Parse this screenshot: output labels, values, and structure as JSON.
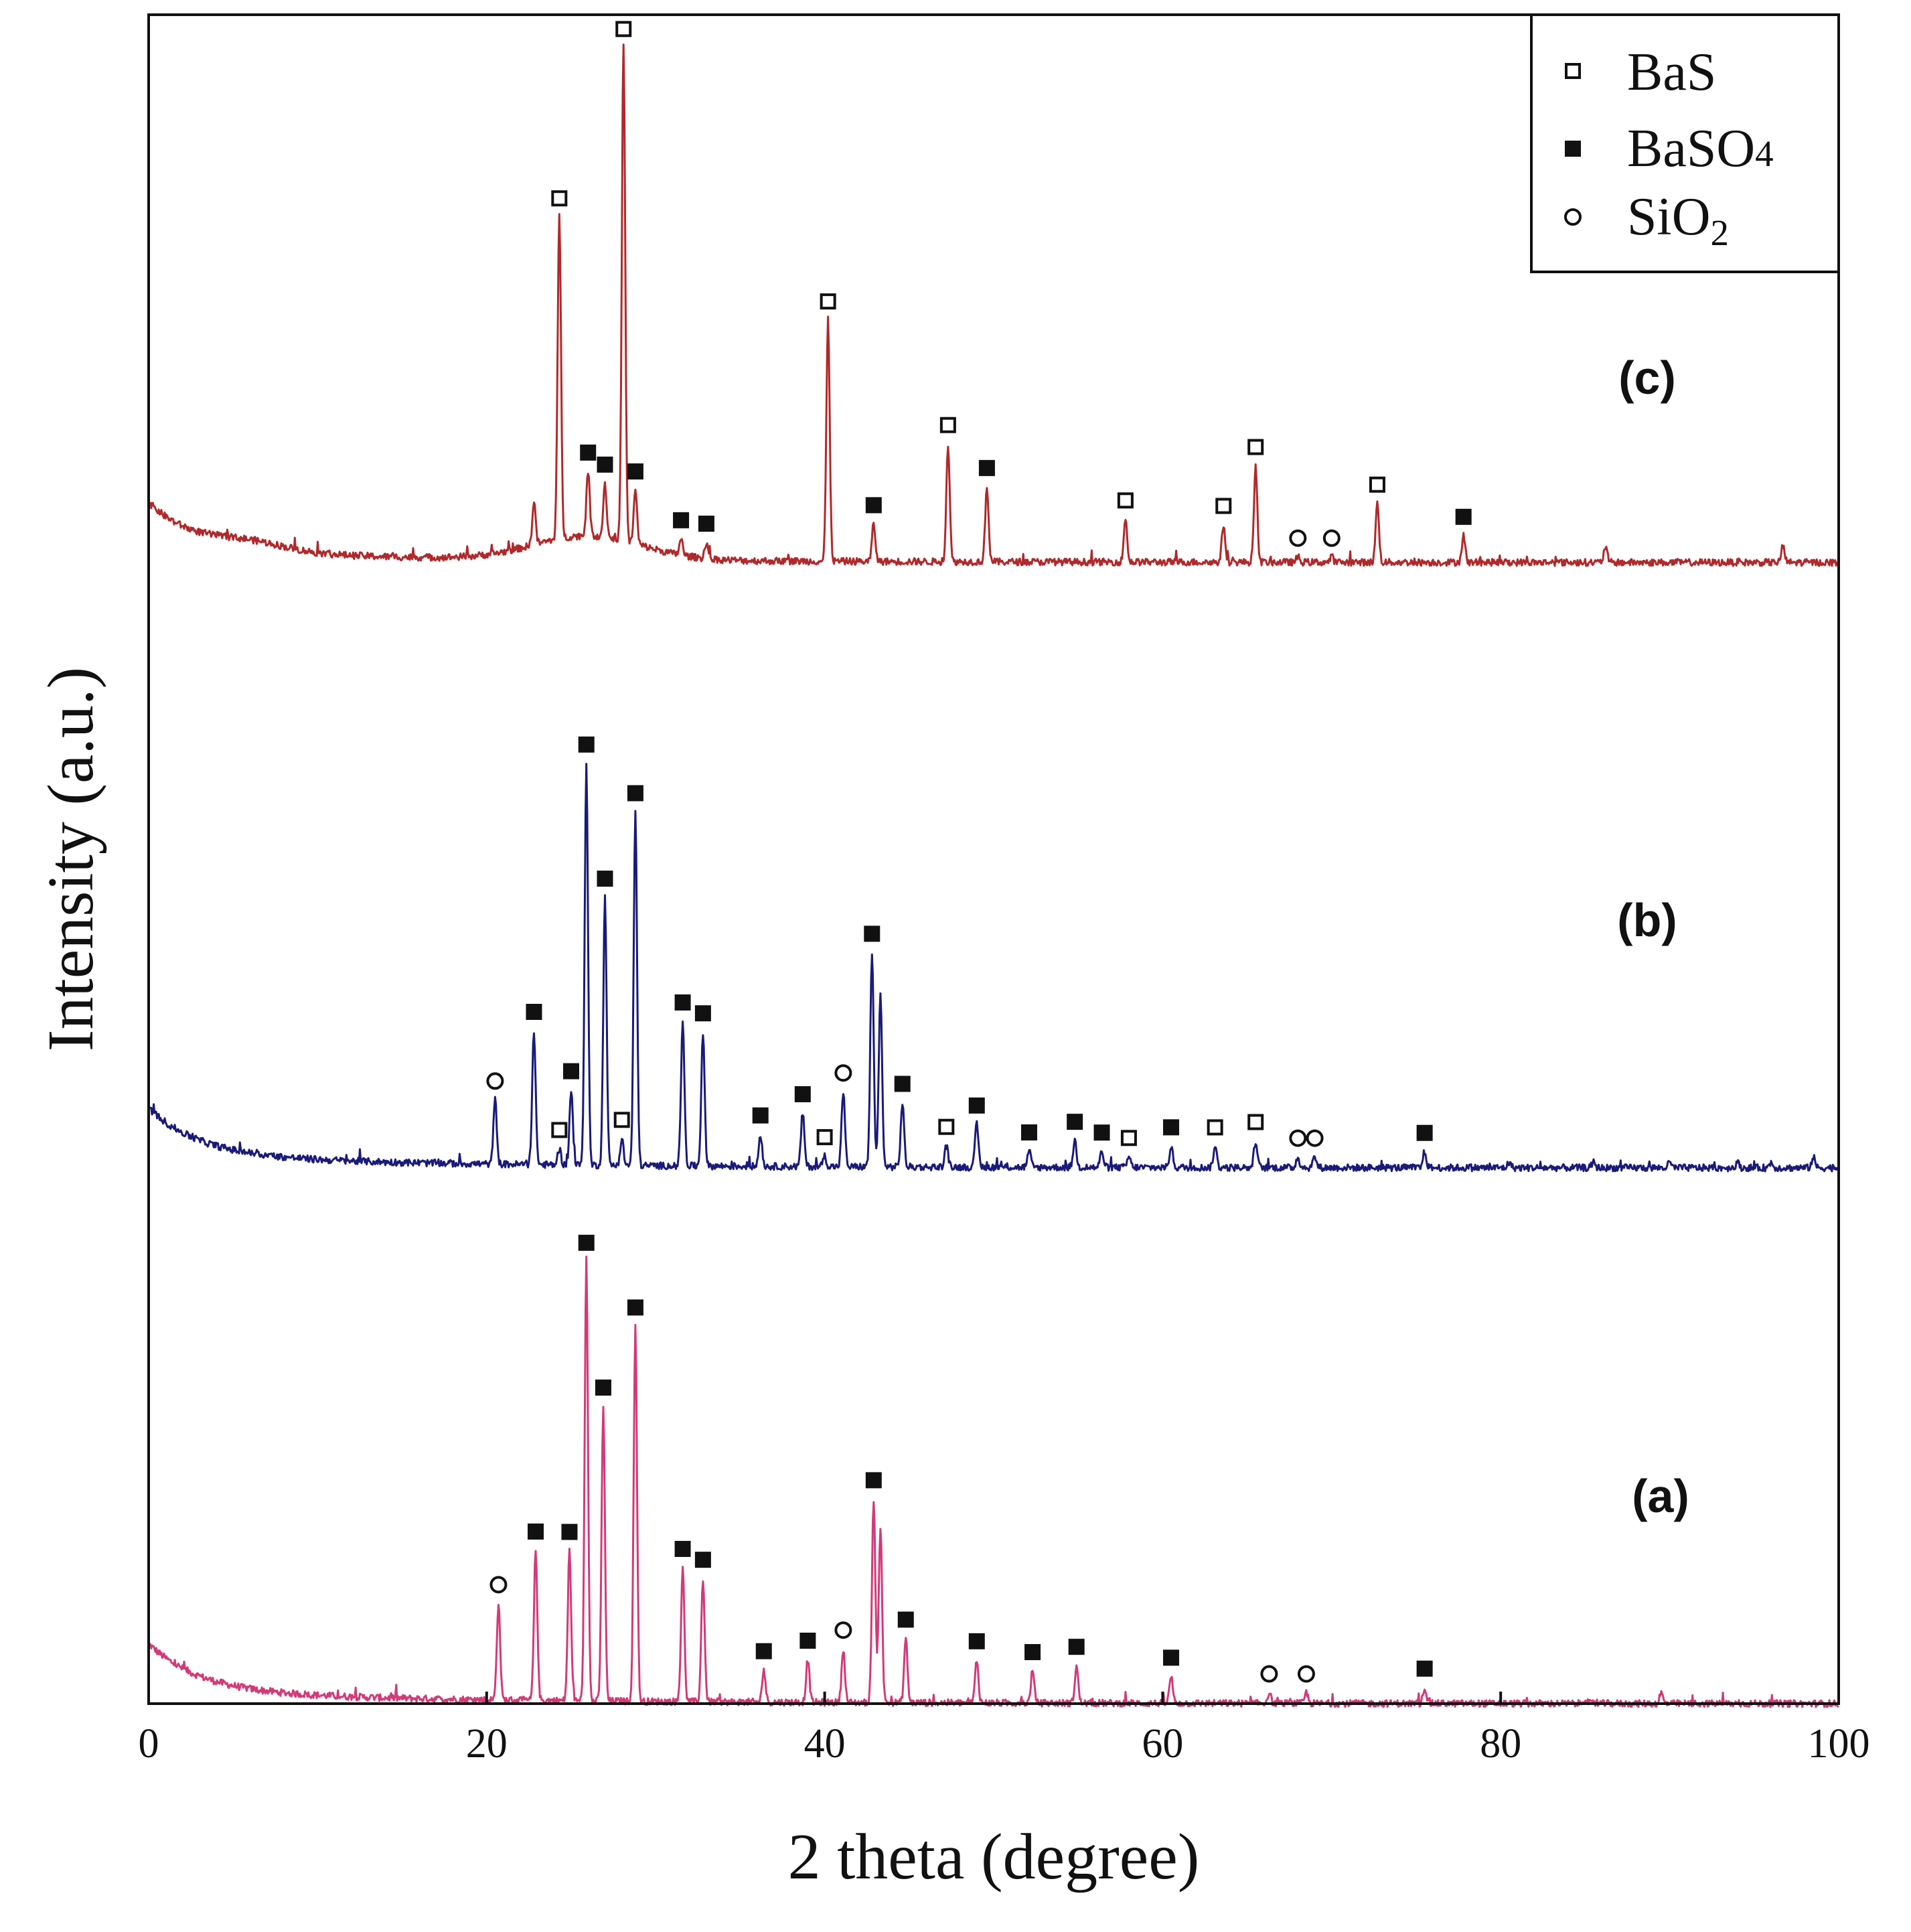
{
  "chart_data": {
    "type": "line",
    "title": "",
    "xlabel": "2 theta (degree)",
    "ylabel": "Intensity (a.u.)",
    "xlim": [
      0,
      100
    ],
    "xticks": [
      0,
      20,
      40,
      60,
      80,
      100
    ],
    "yticks": [],
    "grid": false,
    "legend": {
      "placement": "top-right",
      "entries": [
        {
          "name": "BaS",
          "marker": "open-square"
        },
        {
          "name": "BaSO4",
          "marker": "filled-square"
        },
        {
          "name": "SiO2",
          "marker": "open-circle"
        }
      ]
    },
    "series": [
      {
        "name": "(a)",
        "color": "#d23a78",
        "offset": 0,
        "peaks": [
          [
            20.7,
            18,
            "SiO2"
          ],
          [
            22.9,
            28,
            "BaSO4"
          ],
          [
            24.9,
            28,
            "BaSO4"
          ],
          [
            25.9,
            82,
            "BaSO4"
          ],
          [
            26.9,
            55,
            "BaSO4"
          ],
          [
            28.8,
            70,
            "BaSO4"
          ],
          [
            31.6,
            25,
            "BaSO4"
          ],
          [
            32.8,
            23,
            "BaSO4"
          ],
          [
            36.4,
            6,
            "BaSO4"
          ],
          [
            39.0,
            8,
            "BaSO4"
          ],
          [
            41.1,
            10,
            "SiO2"
          ],
          [
            42.9,
            38,
            "BaSO4"
          ],
          [
            43.3,
            33,
            null
          ],
          [
            44.8,
            12,
            "BaSO4"
          ],
          [
            49.0,
            8,
            "BaSO4"
          ],
          [
            52.3,
            6,
            "BaSO4"
          ],
          [
            54.9,
            7,
            "BaSO4"
          ],
          [
            60.5,
            5,
            "BaSO4"
          ],
          [
            66.3,
            2,
            "SiO2"
          ],
          [
            68.5,
            2,
            "SiO2"
          ],
          [
            75.5,
            3,
            "BaSO4"
          ],
          [
            85.0,
            1,
            null
          ],
          [
            89.5,
            2,
            null
          ]
        ]
      },
      {
        "name": "(b)",
        "color": "#1a1a7a",
        "offset": 100,
        "peaks": [
          [
            20.5,
            12,
            "SiO2"
          ],
          [
            22.8,
            25,
            "BaSO4"
          ],
          [
            24.3,
            3,
            "BaS"
          ],
          [
            25.0,
            14,
            "BaSO4"
          ],
          [
            25.9,
            75,
            "BaSO4"
          ],
          [
            27.0,
            50,
            "BaSO4"
          ],
          [
            28.0,
            5,
            "BaS"
          ],
          [
            28.8,
            66,
            "BaSO4"
          ],
          [
            31.6,
            27,
            "BaSO4"
          ],
          [
            32.8,
            25,
            "BaSO4"
          ],
          [
            36.2,
            6,
            "BaSO4"
          ],
          [
            38.7,
            10,
            "BaSO4"
          ],
          [
            40.0,
            2,
            "BaS"
          ],
          [
            41.1,
            14,
            "SiO2"
          ],
          [
            42.8,
            40,
            "BaSO4"
          ],
          [
            43.3,
            32,
            null
          ],
          [
            44.6,
            12,
            "BaSO4"
          ],
          [
            47.2,
            4,
            "BaS"
          ],
          [
            49.0,
            8,
            "BaSO4"
          ],
          [
            52.1,
            3,
            "BaSO4"
          ],
          [
            54.8,
            5,
            "BaSO4"
          ],
          [
            56.4,
            3,
            "BaSO4"
          ],
          [
            58.0,
            2,
            "BaS"
          ],
          [
            60.5,
            4,
            "BaSO4"
          ],
          [
            63.1,
            4,
            "BaS"
          ],
          [
            65.5,
            5,
            "BaS"
          ],
          [
            68.0,
            2,
            "SiO2"
          ],
          [
            69.0,
            2,
            "SiO2"
          ],
          [
            75.5,
            3,
            "BaSO4"
          ],
          [
            80.5,
            1,
            null
          ],
          [
            85.5,
            1,
            null
          ],
          [
            90.0,
            1,
            null
          ],
          [
            94.0,
            1,
            null
          ],
          [
            96.0,
            1,
            null
          ],
          [
            98.5,
            2,
            null
          ]
        ]
      },
      {
        "name": "(c)",
        "color": "#b0292b",
        "offset": 213,
        "peaks": [
          [
            22.8,
            8,
            null
          ],
          [
            24.3,
            60,
            "BaS"
          ],
          [
            26.0,
            12,
            "BaSO4"
          ],
          [
            27.0,
            10,
            "BaSO4"
          ],
          [
            28.1,
            92,
            "BaS"
          ],
          [
            28.8,
            10,
            "BaSO4"
          ],
          [
            31.5,
            3,
            "BaSO4"
          ],
          [
            33.0,
            3,
            "BaSO4"
          ],
          [
            40.2,
            45,
            "BaS"
          ],
          [
            42.9,
            7,
            "BaSO4"
          ],
          [
            47.3,
            22,
            "BaS"
          ],
          [
            49.6,
            14,
            "BaSO4"
          ],
          [
            57.8,
            8,
            "BaS"
          ],
          [
            63.6,
            7,
            "BaS"
          ],
          [
            65.5,
            18,
            "BaS"
          ],
          [
            68.0,
            1,
            "SiO2"
          ],
          [
            70.0,
            1,
            "SiO2"
          ],
          [
            72.7,
            11,
            "BaS"
          ],
          [
            77.8,
            5,
            "BaSO4"
          ],
          [
            86.2,
            3,
            null
          ],
          [
            96.7,
            3,
            null
          ]
        ]
      }
    ]
  }
}
